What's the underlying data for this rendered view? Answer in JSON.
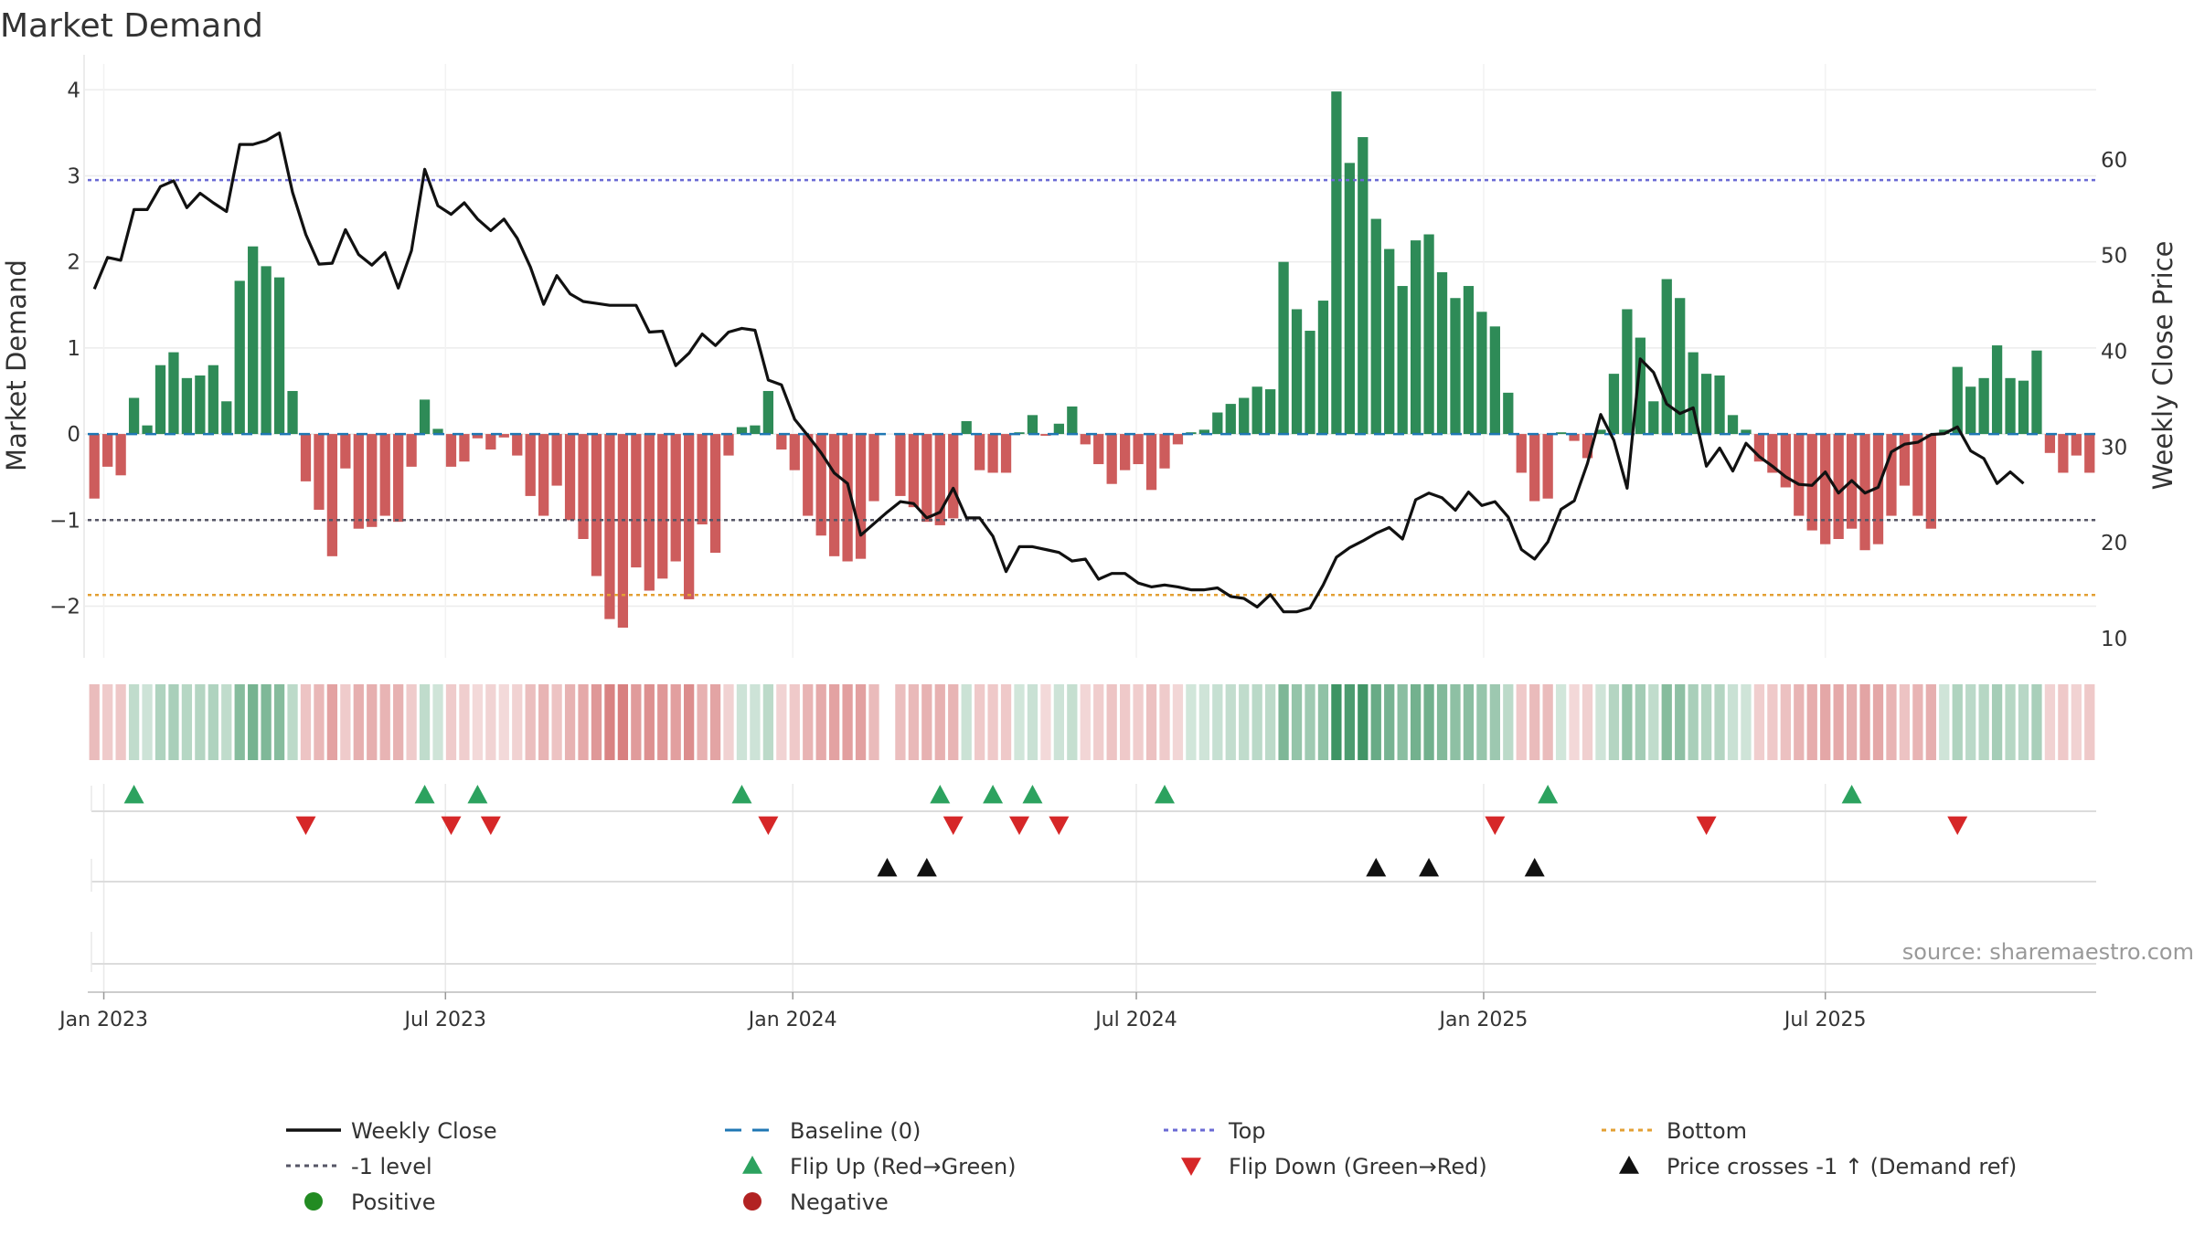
{
  "chart_data": {
    "type": "bar+line",
    "title": "Market Demand",
    "ylabel_left": "Market Demand",
    "ylabel_right": "Weekly Close Price",
    "source": "source: sharemaestro.com",
    "x_start": "2022-12-27",
    "x_step_days": 7,
    "ylim_left": [
      -2.6,
      4.3
    ],
    "ylim_right": [
      8,
      70
    ],
    "yticks_left": [
      4,
      3,
      2,
      1,
      0,
      -1,
      -2
    ],
    "ytick_labels_left": [
      "4",
      "3",
      "2",
      "1",
      "0",
      "−1",
      "−2"
    ],
    "yticks_right": [
      60,
      50,
      40,
      30,
      20,
      10
    ],
    "ytick_labels_right": [
      "60",
      "50",
      "40",
      "30",
      "20",
      "10"
    ],
    "date_ticks": [
      {
        "label": "Jan 2023",
        "date": "2023-01-01"
      },
      {
        "label": "Jul 2023",
        "date": "2023-07-01"
      },
      {
        "label": "Jan 2024",
        "date": "2024-01-01"
      },
      {
        "label": "Jul 2024",
        "date": "2024-07-01"
      },
      {
        "label": "Jan 2025",
        "date": "2025-01-01"
      },
      {
        "label": "Jul 2025",
        "date": "2025-07-01"
      }
    ],
    "reference_lines": {
      "top": 2.95,
      "bottom": -1.87,
      "minus_one": -1.0,
      "baseline": 0
    },
    "colors": {
      "positive": "#2e8b57",
      "negative": "#cd5c5c",
      "price": "#111111",
      "top": "#6a6ad4",
      "bottom": "#e3a034",
      "minus_one": "#555566",
      "baseline": "#1f77b4",
      "flip_up": "#2ca25f",
      "flip_down": "#d62728",
      "cross": "#111111",
      "legend_positive": "#228b22",
      "legend_negative": "#b22222"
    },
    "demand": [
      -0.75,
      -0.38,
      -0.48,
      0.42,
      0.1,
      0.8,
      0.95,
      0.65,
      0.68,
      0.8,
      0.38,
      1.78,
      2.18,
      1.95,
      1.82,
      0.5,
      -0.55,
      -0.88,
      -1.42,
      -0.4,
      -1.1,
      -1.08,
      -0.95,
      -1.02,
      -0.38,
      0.4,
      0.06,
      -0.38,
      -0.32,
      -0.05,
      -0.18,
      -0.04,
      -0.25,
      -0.72,
      -0.95,
      -0.6,
      -1.0,
      -1.22,
      -1.65,
      -2.15,
      -2.25,
      -1.55,
      -1.82,
      -1.68,
      -1.48,
      -1.92,
      -1.05,
      -1.38,
      -0.25,
      0.08,
      0.1,
      0.5,
      -0.18,
      -0.42,
      -0.95,
      -1.18,
      -1.42,
      -1.48,
      -1.45,
      -0.78,
      null,
      -0.72,
      -0.85,
      -1.02,
      -1.06,
      -0.98,
      0.15,
      -0.42,
      -0.45,
      -0.45,
      0.02,
      0.22,
      -0.02,
      0.12,
      0.32,
      -0.12,
      -0.35,
      -0.58,
      -0.42,
      -0.35,
      -0.65,
      -0.4,
      -0.12,
      0.02,
      0.05,
      0.25,
      0.35,
      0.42,
      0.55,
      0.52,
      2.0,
      1.45,
      1.2,
      1.55,
      3.98,
      3.15,
      3.45,
      2.5,
      2.15,
      1.72,
      2.25,
      2.32,
      1.88,
      1.58,
      1.72,
      1.42,
      1.25,
      0.48,
      -0.45,
      -0.78,
      -0.75,
      0.02,
      -0.08,
      -0.28,
      0.05,
      0.7,
      1.45,
      1.12,
      0.38,
      1.8,
      1.58,
      0.95,
      0.7,
      0.68,
      0.22,
      0.05,
      -0.32,
      -0.45,
      -0.62,
      -0.95,
      -1.12,
      -1.28,
      -1.22,
      -1.1,
      -1.35,
      -1.28,
      -0.95,
      -0.6,
      -0.95,
      -1.1,
      0.05,
      0.78,
      0.55,
      0.65,
      1.03,
      0.65,
      0.62,
      0.97,
      -0.22,
      -0.45,
      -0.25,
      -0.45
    ],
    "price": [
      46.5,
      49.8,
      49.5,
      54.8,
      54.8,
      57.2,
      57.8,
      55.0,
      56.5,
      55.5,
      54.6,
      61.6,
      61.6,
      62.0,
      62.8,
      56.6,
      52.2,
      49.1,
      49.2,
      52.7,
      50.1,
      49.0,
      50.3,
      46.6,
      50.5,
      59.0,
      55.2,
      54.3,
      55.5,
      53.8,
      52.6,
      53.8,
      51.8,
      48.8,
      44.9,
      47.9,
      46.0,
      45.2,
      45.0,
      44.8,
      44.8,
      44.8,
      42.0,
      42.1,
      38.5,
      39.8,
      41.8,
      40.6,
      42.0,
      42.4,
      42.2,
      37.0,
      36.5,
      32.9,
      31.2,
      29.4,
      27.3,
      26.2,
      20.8,
      22.0,
      23.2,
      24.3,
      24.1,
      22.6,
      23.2,
      25.7,
      22.6,
      22.6,
      20.7,
      17.0,
      19.6,
      19.6,
      19.3,
      19.0,
      18.1,
      18.3,
      16.2,
      16.8,
      16.8,
      15.8,
      15.4,
      15.6,
      15.4,
      15.1,
      15.1,
      15.3,
      14.4,
      14.2,
      13.3,
      14.6,
      12.8,
      12.8,
      13.2,
      15.6,
      18.5,
      19.5,
      20.2,
      21.0,
      21.6,
      20.4,
      24.5,
      25.2,
      24.7,
      23.4,
      25.3,
      23.9,
      24.3,
      22.7,
      19.3,
      18.3,
      20.1,
      23.5,
      24.4,
      28.3,
      33.4,
      30.7,
      25.7,
      39.2,
      37.8,
      34.5,
      33.5,
      34.1,
      28.0,
      29.9,
      27.5,
      30.4,
      29.0,
      28.0,
      26.9,
      26.1,
      26.0,
      27.4,
      25.2,
      26.5,
      25.2,
      25.8,
      29.5,
      30.3,
      30.5,
      31.3,
      31.4,
      32.1,
      29.6,
      28.8,
      26.2,
      27.4,
      26.2
    ],
    "flip_up_indices": [
      3,
      25,
      29,
      49,
      64,
      68,
      71,
      81,
      110,
      133
    ],
    "flip_down_indices": [
      16,
      27,
      30,
      51,
      65,
      70,
      73,
      106,
      122,
      141
    ],
    "price_cross_indices": [
      60,
      63,
      97,
      101,
      109
    ],
    "legend": [
      {
        "label": "Weekly Close",
        "symbol": "solid-line"
      },
      {
        "label": "Baseline (0)",
        "symbol": "dashed-line"
      },
      {
        "label": "Top",
        "symbol": "dotted-line"
      },
      {
        "label": "Bottom",
        "symbol": "dotted-line"
      },
      {
        "label": "-1 level",
        "symbol": "dotted-line"
      },
      {
        "label": "Flip Up (Red→Green)",
        "symbol": "triangle-up"
      },
      {
        "label": "Flip Down (Green→Red)",
        "symbol": "triangle-down"
      },
      {
        "label": "Price crosses -1 ↑ (Demand ref)",
        "symbol": "triangle-up"
      },
      {
        "label": "Positive",
        "symbol": "circle"
      },
      {
        "label": "Negative",
        "symbol": "circle"
      }
    ]
  }
}
